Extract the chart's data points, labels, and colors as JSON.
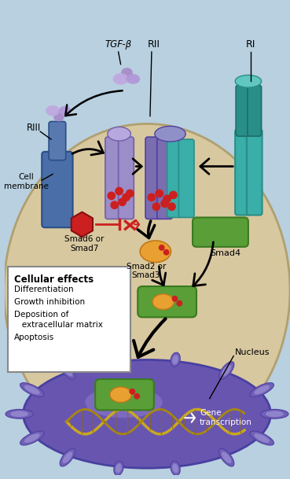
{
  "bg_color": "#b8d0e0",
  "cell_bg": "#d8c8a0",
  "nucleus_color": "#6855b0",
  "labels": {
    "tgf": "TGF-β",
    "rII": "RII",
    "rI": "RI",
    "rIII": "RIII",
    "cell_membrane": "Cell\nmembrane",
    "smad6_7": "Smad6 or\nSmad7",
    "smad2_3": "Smad2 or\nSmad3",
    "smad4": "Smad4",
    "nucleus": "Nucleus",
    "gene_transcription": "Gene\ntranscription"
  },
  "box_title": "Cellular effects",
  "box_items": [
    "Differentiation",
    "Growth inhibition",
    "Deposition of\n   extracellular matrix",
    "Apoptosis"
  ],
  "colors": {
    "rIII_blue": "#4a6fa8",
    "rII_purple": "#9b8dc8",
    "rII_purple2": "#7a6db0",
    "rI_teal": "#3aaea8",
    "rI_teal2": "#2a8e88",
    "smad_orange": "#e8a030",
    "smad4_green": "#5a9e38",
    "red_dot": "#cc2020",
    "inhibitor_red": "#cc2020",
    "dna_yellow": "#c8a820",
    "dna_gold": "#a88810"
  }
}
